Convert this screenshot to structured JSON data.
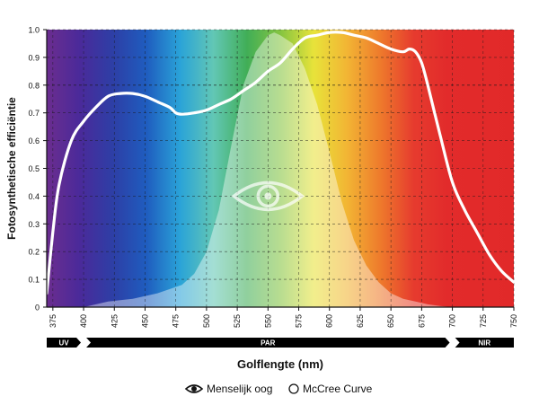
{
  "chart_data": {
    "type": "line",
    "title": "",
    "xlabel": "Golflengte (nm)",
    "ylabel": "Fotosynthetische efficiëntie",
    "xlim": [
      370,
      750
    ],
    "ylim": [
      0,
      1.0
    ],
    "x_ticks": [
      375,
      400,
      425,
      450,
      475,
      500,
      525,
      550,
      575,
      600,
      625,
      650,
      675,
      700,
      725,
      750
    ],
    "y_ticks": [
      0,
      0.1,
      0.2,
      0.3,
      0.4,
      0.5,
      0.6,
      0.7,
      0.8,
      0.9,
      1.0
    ],
    "y_tick_labels": [
      "0",
      "0.1",
      "0.2",
      "0.3",
      "0.4",
      "0.5",
      "0.6",
      "0.7",
      "0.8",
      "0.9",
      "1.0"
    ],
    "grid": true,
    "background": "visible-spectrum gradient (violet → red)",
    "series": [
      {
        "name": "McCree Curve",
        "style": "white line",
        "x": [
          370,
          375,
          380,
          390,
          400,
          410,
          420,
          430,
          440,
          450,
          460,
          470,
          475,
          480,
          490,
          500,
          510,
          520,
          530,
          540,
          550,
          560,
          570,
          580,
          590,
          600,
          610,
          620,
          630,
          640,
          650,
          660,
          665,
          670,
          675,
          680,
          690,
          700,
          710,
          720,
          730,
          740,
          750
        ],
        "values": [
          0.05,
          0.27,
          0.44,
          0.6,
          0.67,
          0.72,
          0.76,
          0.77,
          0.77,
          0.76,
          0.74,
          0.72,
          0.7,
          0.695,
          0.7,
          0.71,
          0.73,
          0.75,
          0.78,
          0.81,
          0.85,
          0.88,
          0.93,
          0.97,
          0.98,
          0.99,
          0.99,
          0.98,
          0.97,
          0.95,
          0.93,
          0.92,
          0.93,
          0.92,
          0.88,
          0.8,
          0.62,
          0.45,
          0.35,
          0.27,
          0.19,
          0.13,
          0.09
        ]
      },
      {
        "name": "Menselijk oog",
        "style": "white translucent filled area",
        "x": [
          370,
          400,
          420,
          440,
          460,
          480,
          490,
          500,
          510,
          520,
          530,
          540,
          550,
          555,
          560,
          570,
          580,
          590,
          600,
          610,
          620,
          630,
          640,
          650,
          660,
          670,
          680,
          690,
          700
        ],
        "values": [
          0.0,
          0.0,
          0.02,
          0.03,
          0.05,
          0.08,
          0.12,
          0.2,
          0.35,
          0.58,
          0.8,
          0.92,
          0.98,
          0.99,
          0.98,
          0.95,
          0.86,
          0.73,
          0.56,
          0.38,
          0.24,
          0.15,
          0.09,
          0.05,
          0.03,
          0.02,
          0.01,
          0.004,
          0.0
        ]
      }
    ],
    "bands": [
      {
        "label": "UV",
        "from": 370,
        "to": 400
      },
      {
        "label": "PAR",
        "from": 400,
        "to": 700
      },
      {
        "label": "NIR",
        "from": 700,
        "to": 750
      }
    ],
    "legend": {
      "placement": "bottom-center",
      "items": [
        {
          "label": "Menselijk oog",
          "icon": "eye-icon"
        },
        {
          "label": "McCree Curve",
          "icon": "circle-outline-icon"
        }
      ]
    },
    "annotations": [
      {
        "icon": "eye-icon",
        "position": "center, on human-eye curve"
      }
    ],
    "colors": {
      "line": "#ffffff",
      "axis": "#111111",
      "grid": "#1a1a1a",
      "band_bar": "#000000",
      "spectrum": [
        "#6b2d8f",
        "#4a2a9a",
        "#2d3fa6",
        "#1f5dbf",
        "#2aa3d8",
        "#62c7b5",
        "#41ae57",
        "#84c441",
        "#e8e33a",
        "#f2b534",
        "#ee7a2c",
        "#e63b2e",
        "#e22b2b",
        "#e22a2a",
        "#e12929"
      ]
    }
  }
}
